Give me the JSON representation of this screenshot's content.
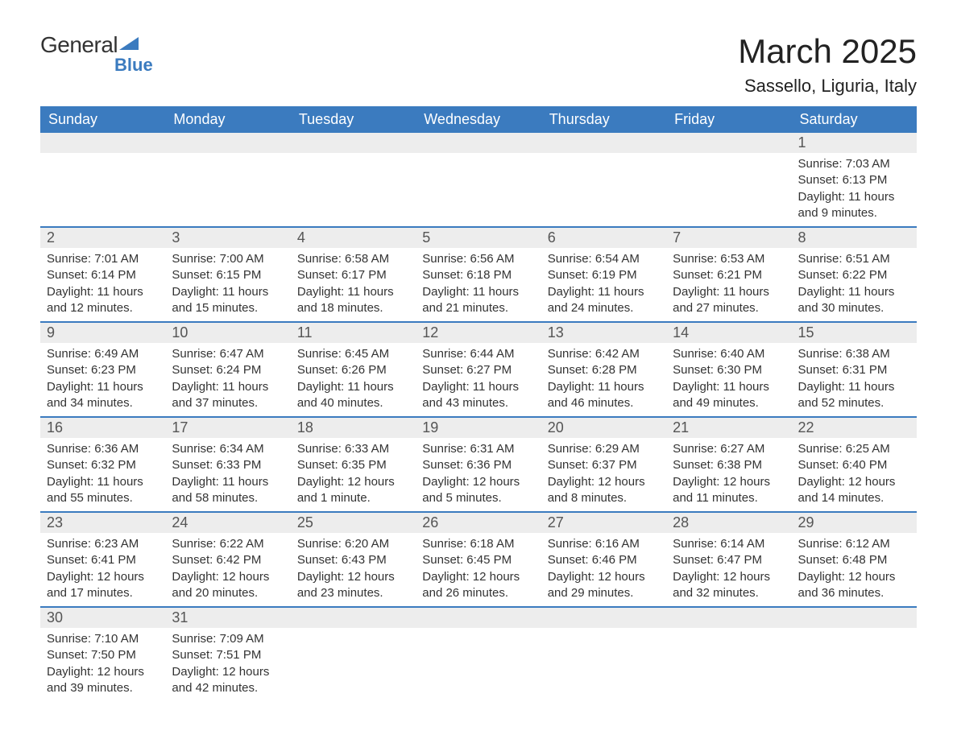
{
  "logo": {
    "general": "General",
    "blue": "Blue"
  },
  "title": "March 2025",
  "location": "Sassello, Liguria, Italy",
  "colors": {
    "header_bg": "#3b7bbf",
    "header_text": "#ffffff",
    "daynum_bg": "#ededed",
    "daynum_text": "#555555",
    "border": "#3b7bbf",
    "body_text": "#333333"
  },
  "day_headers": [
    "Sunday",
    "Monday",
    "Tuesday",
    "Wednesday",
    "Thursday",
    "Friday",
    "Saturday"
  ],
  "weeks": [
    [
      {
        "empty": true
      },
      {
        "empty": true
      },
      {
        "empty": true
      },
      {
        "empty": true
      },
      {
        "empty": true
      },
      {
        "empty": true
      },
      {
        "num": "1",
        "sunrise": "Sunrise: 7:03 AM",
        "sunset": "Sunset: 6:13 PM",
        "daylight": "Daylight: 11 hours and 9 minutes."
      }
    ],
    [
      {
        "num": "2",
        "sunrise": "Sunrise: 7:01 AM",
        "sunset": "Sunset: 6:14 PM",
        "daylight": "Daylight: 11 hours and 12 minutes."
      },
      {
        "num": "3",
        "sunrise": "Sunrise: 7:00 AM",
        "sunset": "Sunset: 6:15 PM",
        "daylight": "Daylight: 11 hours and 15 minutes."
      },
      {
        "num": "4",
        "sunrise": "Sunrise: 6:58 AM",
        "sunset": "Sunset: 6:17 PM",
        "daylight": "Daylight: 11 hours and 18 minutes."
      },
      {
        "num": "5",
        "sunrise": "Sunrise: 6:56 AM",
        "sunset": "Sunset: 6:18 PM",
        "daylight": "Daylight: 11 hours and 21 minutes."
      },
      {
        "num": "6",
        "sunrise": "Sunrise: 6:54 AM",
        "sunset": "Sunset: 6:19 PM",
        "daylight": "Daylight: 11 hours and 24 minutes."
      },
      {
        "num": "7",
        "sunrise": "Sunrise: 6:53 AM",
        "sunset": "Sunset: 6:21 PM",
        "daylight": "Daylight: 11 hours and 27 minutes."
      },
      {
        "num": "8",
        "sunrise": "Sunrise: 6:51 AM",
        "sunset": "Sunset: 6:22 PM",
        "daylight": "Daylight: 11 hours and 30 minutes."
      }
    ],
    [
      {
        "num": "9",
        "sunrise": "Sunrise: 6:49 AM",
        "sunset": "Sunset: 6:23 PM",
        "daylight": "Daylight: 11 hours and 34 minutes."
      },
      {
        "num": "10",
        "sunrise": "Sunrise: 6:47 AM",
        "sunset": "Sunset: 6:24 PM",
        "daylight": "Daylight: 11 hours and 37 minutes."
      },
      {
        "num": "11",
        "sunrise": "Sunrise: 6:45 AM",
        "sunset": "Sunset: 6:26 PM",
        "daylight": "Daylight: 11 hours and 40 minutes."
      },
      {
        "num": "12",
        "sunrise": "Sunrise: 6:44 AM",
        "sunset": "Sunset: 6:27 PM",
        "daylight": "Daylight: 11 hours and 43 minutes."
      },
      {
        "num": "13",
        "sunrise": "Sunrise: 6:42 AM",
        "sunset": "Sunset: 6:28 PM",
        "daylight": "Daylight: 11 hours and 46 minutes."
      },
      {
        "num": "14",
        "sunrise": "Sunrise: 6:40 AM",
        "sunset": "Sunset: 6:30 PM",
        "daylight": "Daylight: 11 hours and 49 minutes."
      },
      {
        "num": "15",
        "sunrise": "Sunrise: 6:38 AM",
        "sunset": "Sunset: 6:31 PM",
        "daylight": "Daylight: 11 hours and 52 minutes."
      }
    ],
    [
      {
        "num": "16",
        "sunrise": "Sunrise: 6:36 AM",
        "sunset": "Sunset: 6:32 PM",
        "daylight": "Daylight: 11 hours and 55 minutes."
      },
      {
        "num": "17",
        "sunrise": "Sunrise: 6:34 AM",
        "sunset": "Sunset: 6:33 PM",
        "daylight": "Daylight: 11 hours and 58 minutes."
      },
      {
        "num": "18",
        "sunrise": "Sunrise: 6:33 AM",
        "sunset": "Sunset: 6:35 PM",
        "daylight": "Daylight: 12 hours and 1 minute."
      },
      {
        "num": "19",
        "sunrise": "Sunrise: 6:31 AM",
        "sunset": "Sunset: 6:36 PM",
        "daylight": "Daylight: 12 hours and 5 minutes."
      },
      {
        "num": "20",
        "sunrise": "Sunrise: 6:29 AM",
        "sunset": "Sunset: 6:37 PM",
        "daylight": "Daylight: 12 hours and 8 minutes."
      },
      {
        "num": "21",
        "sunrise": "Sunrise: 6:27 AM",
        "sunset": "Sunset: 6:38 PM",
        "daylight": "Daylight: 12 hours and 11 minutes."
      },
      {
        "num": "22",
        "sunrise": "Sunrise: 6:25 AM",
        "sunset": "Sunset: 6:40 PM",
        "daylight": "Daylight: 12 hours and 14 minutes."
      }
    ],
    [
      {
        "num": "23",
        "sunrise": "Sunrise: 6:23 AM",
        "sunset": "Sunset: 6:41 PM",
        "daylight": "Daylight: 12 hours and 17 minutes."
      },
      {
        "num": "24",
        "sunrise": "Sunrise: 6:22 AM",
        "sunset": "Sunset: 6:42 PM",
        "daylight": "Daylight: 12 hours and 20 minutes."
      },
      {
        "num": "25",
        "sunrise": "Sunrise: 6:20 AM",
        "sunset": "Sunset: 6:43 PM",
        "daylight": "Daylight: 12 hours and 23 minutes."
      },
      {
        "num": "26",
        "sunrise": "Sunrise: 6:18 AM",
        "sunset": "Sunset: 6:45 PM",
        "daylight": "Daylight: 12 hours and 26 minutes."
      },
      {
        "num": "27",
        "sunrise": "Sunrise: 6:16 AM",
        "sunset": "Sunset: 6:46 PM",
        "daylight": "Daylight: 12 hours and 29 minutes."
      },
      {
        "num": "28",
        "sunrise": "Sunrise: 6:14 AM",
        "sunset": "Sunset: 6:47 PM",
        "daylight": "Daylight: 12 hours and 32 minutes."
      },
      {
        "num": "29",
        "sunrise": "Sunrise: 6:12 AM",
        "sunset": "Sunset: 6:48 PM",
        "daylight": "Daylight: 12 hours and 36 minutes."
      }
    ],
    [
      {
        "num": "30",
        "sunrise": "Sunrise: 7:10 AM",
        "sunset": "Sunset: 7:50 PM",
        "daylight": "Daylight: 12 hours and 39 minutes."
      },
      {
        "num": "31",
        "sunrise": "Sunrise: 7:09 AM",
        "sunset": "Sunset: 7:51 PM",
        "daylight": "Daylight: 12 hours and 42 minutes."
      },
      {
        "empty": true
      },
      {
        "empty": true
      },
      {
        "empty": true
      },
      {
        "empty": true
      },
      {
        "empty": true
      }
    ]
  ]
}
